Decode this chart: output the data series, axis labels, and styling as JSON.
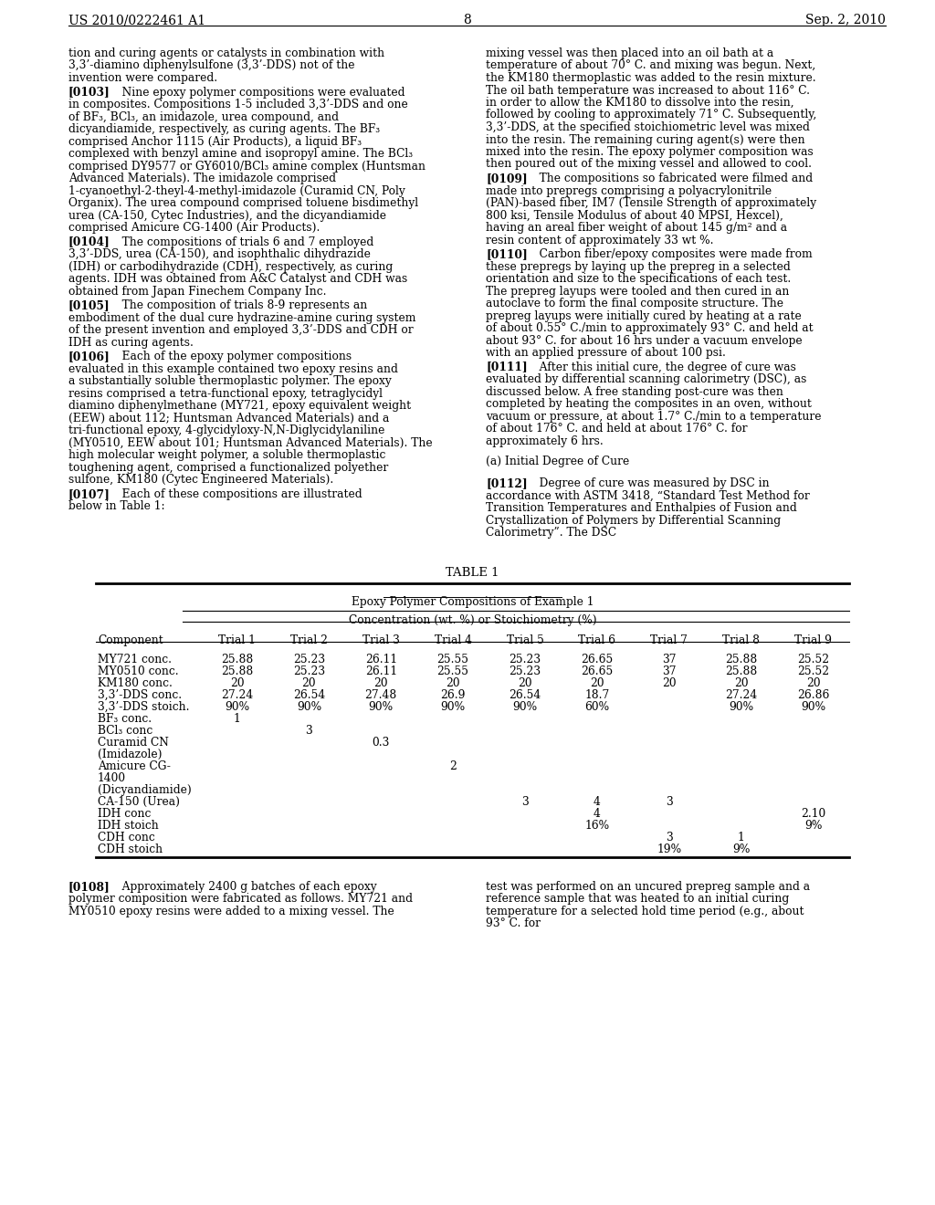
{
  "header_left": "US 2010/0222461 A1",
  "header_right": "Sep. 2, 2010",
  "page_number": "8",
  "bg_color": "#ffffff",
  "col1_paragraphs": [
    {
      "type": "continuation",
      "text": "tion and curing agents or catalysts in combination with 3,3’-diamino diphenylsulfone (3,3’-DDS) not of the invention were compared."
    },
    {
      "type": "numbered",
      "num": "[0103]",
      "text": "Nine epoxy polymer compositions were evaluated in composites. Compositions 1-5 included 3,3’-DDS and one of BF₃, BCl₃, an imidazole, urea compound, and dicyandiamide, respectively, as curing agents. The BF₃ comprised Anchor 1115 (Air Products), a liquid BF₃ complexed with benzyl amine and isopropyl amine. The BCl₃ comprised DY9577 or GY6010/BCl₃ amine complex (Huntsman Advanced Materials). The imidazole comprised 1-cyanoethyl-2-theyl-4-methyl-imidazole (Curamid CN, Poly Organix). The urea compound comprised toluene bisdimethyl urea (CA-150, Cytec Industries), and the dicyandiamide comprised Amicure CG-1400 (Air Products)."
    },
    {
      "type": "numbered",
      "num": "[0104]",
      "text": "The compositions of trials 6 and 7 employed 3,3’-DDS, urea (CA-150), and isophthalic dihydrazide (IDH) or carbodihydrazide (CDH), respectively, as curing agents. IDH was obtained from A&C Catalyst and CDH was obtained from Japan Finechem Company Inc."
    },
    {
      "type": "numbered",
      "num": "[0105]",
      "text": "The composition of trials 8-9 represents an embodiment of the dual cure hydrazine-amine curing system of the present invention and employed 3,3’-DDS and CDH or IDH as curing agents."
    },
    {
      "type": "numbered",
      "num": "[0106]",
      "text": "Each of the epoxy polymer compositions evaluated in this example contained two epoxy resins and a substantially soluble thermoplastic polymer. The epoxy resins comprised a tetra-functional epoxy, tetraglycidyl diamino diphenylmethane (MY721, epoxy equivalent weight (EEW) about 112; Huntsman Advanced Materials) and a tri-functional epoxy, 4-glycidyloxy-N,N-Diglycidylaniline (MY0510, EEW about 101; Huntsman Advanced Materials). The high molecular weight polymer, a soluble thermoplastic toughening agent, comprised a functionalized polyether sulfone, KM180 (Cytec Engineered Materials)."
    },
    {
      "type": "numbered",
      "num": "[0107]",
      "text": "Each of these compositions are illustrated below in Table 1:"
    }
  ],
  "col2_paragraphs": [
    {
      "type": "continuation",
      "text": "mixing vessel was then placed into an oil bath at a temperature of about 70° C. and mixing was begun. Next, the KM180 thermoplastic was added to the resin mixture. The oil bath temperature was increased to about 116° C. in order to allow the KM180 to dissolve into the resin, followed by cooling to approximately 71° C. Subsequently, 3,3’-DDS, at the specified stoichiometric level was mixed into the resin. The remaining curing agent(s) were then mixed into the resin. The epoxy polymer composition was then poured out of the mixing vessel and allowed to cool."
    },
    {
      "type": "numbered",
      "num": "[0109]",
      "text": "The compositions so fabricated were filmed and made into prepregs comprising a polyacrylonitrile (PAN)-based fiber, IM7 (Tensile Strength of approximately 800 ksi, Tensile Modulus of about 40 MPSI, Hexcel), having an areal fiber weight of about 145 g/m² and a resin content of approximately 33 wt %."
    },
    {
      "type": "numbered",
      "num": "[0110]",
      "text": "Carbon fiber/epoxy composites were made from these prepregs by laying up the prepreg in a selected orientation and size to the specifications of each test. The prepreg layups were tooled and then cured in an autoclave to form the final composite structure. The prepreg layups were initially cured by heating at a rate of about 0.55° C./min to approximately 93° C. and held at about 93° C. for about 16 hrs under a vacuum envelope with an applied pressure of about 100 psi."
    },
    {
      "type": "numbered",
      "num": "[0111]",
      "text": "After this initial cure, the degree of cure was evaluated by differential scanning calorimetry (DSC), as discussed below. A free standing post-cure was then completed by heating the composites in an oven, without vacuum or pressure, at about 1.7° C./min to a temperature of about 176° C. and held at about 176° C. for approximately 6 hrs."
    },
    {
      "type": "section",
      "text": "(a) Initial Degree of Cure"
    },
    {
      "type": "numbered",
      "num": "[0112]",
      "text": "Degree of cure was measured by DSC in accordance with ASTM 3418, “Standard Test Method for Transition Temperatures and Enthalpies of Fusion and Crystallization of Polymers by Differential Scanning Calorimetry”. The DSC"
    }
  ],
  "table_title": "TABLE 1",
  "table_subtitle": "Epoxy Polymer Compositions of Example 1",
  "table_subheader": "Concentration (wt. %) or Stoichiometry (%)",
  "table_columns": [
    "Component",
    "Trial 1",
    "Trial 2",
    "Trial 3",
    "Trial 4",
    "Trial 5",
    "Trial 6",
    "Trial 7",
    "Trial 8",
    "Trial 9"
  ],
  "table_rows": [
    [
      "MY721 conc.",
      "25.88",
      "25.23",
      "26.11",
      "25.55",
      "25.23",
      "26.65",
      "37",
      "25.88",
      "25.52"
    ],
    [
      "MY0510 conc.",
      "25.88",
      "25.23",
      "26.11",
      "25.55",
      "25.23",
      "26.65",
      "37",
      "25.88",
      "25.52"
    ],
    [
      "KM180 conc.",
      "20",
      "20",
      "20",
      "20",
      "20",
      "20",
      "20",
      "20",
      "20"
    ],
    [
      "3,3’-DDS conc.",
      "27.24",
      "26.54",
      "27.48",
      "26.9",
      "26.54",
      "18.7",
      "",
      "27.24",
      "26.86"
    ],
    [
      "3,3’-DDS stoich.",
      "90%",
      "90%",
      "90%",
      "90%",
      "90%",
      "60%",
      "",
      "90%",
      "90%"
    ],
    [
      "BF₃ conc.",
      "1",
      "",
      "",
      "",
      "",
      "",
      "",
      "",
      ""
    ],
    [
      "BCl₃ conc",
      "",
      "3",
      "",
      "",
      "",
      "",
      "",
      "",
      ""
    ],
    [
      "Curamid CN",
      "",
      "",
      "0.3",
      "",
      "",
      "",
      "",
      "",
      ""
    ],
    [
      "(Imidazole)",
      "",
      "",
      "",
      "",
      "",
      "",
      "",
      "",
      ""
    ],
    [
      "Amicure CG-",
      "",
      "",
      "",
      "2",
      "",
      "",
      "",
      "",
      ""
    ],
    [
      "1400",
      "",
      "",
      "",
      "",
      "",
      "",
      "",
      "",
      ""
    ],
    [
      "(Dicyandiamide)",
      "",
      "",
      "",
      "",
      "",
      "",
      "",
      "",
      ""
    ],
    [
      "CA-150 (Urea)",
      "",
      "",
      "",
      "",
      "3",
      "4",
      "3",
      "",
      ""
    ],
    [
      "IDH conc",
      "",
      "",
      "",
      "",
      "",
      "4",
      "",
      "",
      "2.10"
    ],
    [
      "IDH stoich",
      "",
      "",
      "",
      "",
      "",
      "16%",
      "",
      "",
      "9%"
    ],
    [
      "CDH conc",
      "",
      "",
      "",
      "",
      "",
      "",
      "3",
      "1",
      ""
    ],
    [
      "CDH stoich",
      "",
      "",
      "",
      "",
      "",
      "",
      "19%",
      "9%",
      ""
    ]
  ],
  "bottom_col1": "[0108]   Approximately 2400 g batches of each epoxy polymer composition were fabricated as follows. MY721 and MY0510 epoxy resins were added to a mixing vessel. The",
  "bottom_col2": "test was performed on an uncured prepreg sample and a reference sample that was heated to an initial curing temperature for a selected hold time period (e.g., about 93° C. for"
}
